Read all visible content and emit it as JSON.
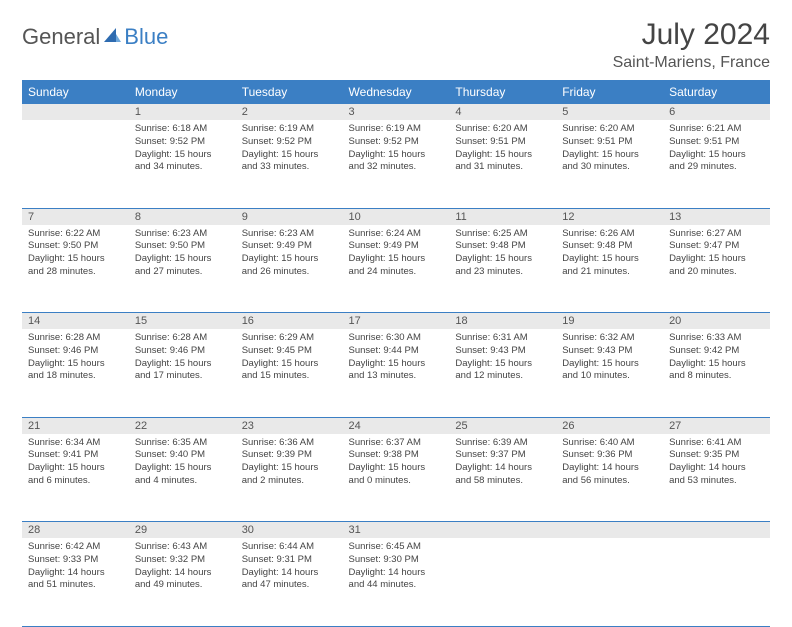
{
  "brand": {
    "part1": "General",
    "part2": "Blue"
  },
  "title": "July 2024",
  "location": "Saint-Mariens, France",
  "colors": {
    "header_bg": "#3b7fc4",
    "header_fg": "#ffffff",
    "daynum_bg": "#e9e9e9",
    "text": "#444444",
    "border": "#3b7fc4"
  },
  "weekdays": [
    "Sunday",
    "Monday",
    "Tuesday",
    "Wednesday",
    "Thursday",
    "Friday",
    "Saturday"
  ],
  "weeks": [
    [
      null,
      {
        "n": "1",
        "sr": "6:18 AM",
        "ss": "9:52 PM",
        "dl": "15 hours and 34 minutes."
      },
      {
        "n": "2",
        "sr": "6:19 AM",
        "ss": "9:52 PM",
        "dl": "15 hours and 33 minutes."
      },
      {
        "n": "3",
        "sr": "6:19 AM",
        "ss": "9:52 PM",
        "dl": "15 hours and 32 minutes."
      },
      {
        "n": "4",
        "sr": "6:20 AM",
        "ss": "9:51 PM",
        "dl": "15 hours and 31 minutes."
      },
      {
        "n": "5",
        "sr": "6:20 AM",
        "ss": "9:51 PM",
        "dl": "15 hours and 30 minutes."
      },
      {
        "n": "6",
        "sr": "6:21 AM",
        "ss": "9:51 PM",
        "dl": "15 hours and 29 minutes."
      }
    ],
    [
      {
        "n": "7",
        "sr": "6:22 AM",
        "ss": "9:50 PM",
        "dl": "15 hours and 28 minutes."
      },
      {
        "n": "8",
        "sr": "6:23 AM",
        "ss": "9:50 PM",
        "dl": "15 hours and 27 minutes."
      },
      {
        "n": "9",
        "sr": "6:23 AM",
        "ss": "9:49 PM",
        "dl": "15 hours and 26 minutes."
      },
      {
        "n": "10",
        "sr": "6:24 AM",
        "ss": "9:49 PM",
        "dl": "15 hours and 24 minutes."
      },
      {
        "n": "11",
        "sr": "6:25 AM",
        "ss": "9:48 PM",
        "dl": "15 hours and 23 minutes."
      },
      {
        "n": "12",
        "sr": "6:26 AM",
        "ss": "9:48 PM",
        "dl": "15 hours and 21 minutes."
      },
      {
        "n": "13",
        "sr": "6:27 AM",
        "ss": "9:47 PM",
        "dl": "15 hours and 20 minutes."
      }
    ],
    [
      {
        "n": "14",
        "sr": "6:28 AM",
        "ss": "9:46 PM",
        "dl": "15 hours and 18 minutes."
      },
      {
        "n": "15",
        "sr": "6:28 AM",
        "ss": "9:46 PM",
        "dl": "15 hours and 17 minutes."
      },
      {
        "n": "16",
        "sr": "6:29 AM",
        "ss": "9:45 PM",
        "dl": "15 hours and 15 minutes."
      },
      {
        "n": "17",
        "sr": "6:30 AM",
        "ss": "9:44 PM",
        "dl": "15 hours and 13 minutes."
      },
      {
        "n": "18",
        "sr": "6:31 AM",
        "ss": "9:43 PM",
        "dl": "15 hours and 12 minutes."
      },
      {
        "n": "19",
        "sr": "6:32 AM",
        "ss": "9:43 PM",
        "dl": "15 hours and 10 minutes."
      },
      {
        "n": "20",
        "sr": "6:33 AM",
        "ss": "9:42 PM",
        "dl": "15 hours and 8 minutes."
      }
    ],
    [
      {
        "n": "21",
        "sr": "6:34 AM",
        "ss": "9:41 PM",
        "dl": "15 hours and 6 minutes."
      },
      {
        "n": "22",
        "sr": "6:35 AM",
        "ss": "9:40 PM",
        "dl": "15 hours and 4 minutes."
      },
      {
        "n": "23",
        "sr": "6:36 AM",
        "ss": "9:39 PM",
        "dl": "15 hours and 2 minutes."
      },
      {
        "n": "24",
        "sr": "6:37 AM",
        "ss": "9:38 PM",
        "dl": "15 hours and 0 minutes."
      },
      {
        "n": "25",
        "sr": "6:39 AM",
        "ss": "9:37 PM",
        "dl": "14 hours and 58 minutes."
      },
      {
        "n": "26",
        "sr": "6:40 AM",
        "ss": "9:36 PM",
        "dl": "14 hours and 56 minutes."
      },
      {
        "n": "27",
        "sr": "6:41 AM",
        "ss": "9:35 PM",
        "dl": "14 hours and 53 minutes."
      }
    ],
    [
      {
        "n": "28",
        "sr": "6:42 AM",
        "ss": "9:33 PM",
        "dl": "14 hours and 51 minutes."
      },
      {
        "n": "29",
        "sr": "6:43 AM",
        "ss": "9:32 PM",
        "dl": "14 hours and 49 minutes."
      },
      {
        "n": "30",
        "sr": "6:44 AM",
        "ss": "9:31 PM",
        "dl": "14 hours and 47 minutes."
      },
      {
        "n": "31",
        "sr": "6:45 AM",
        "ss": "9:30 PM",
        "dl": "14 hours and 44 minutes."
      },
      null,
      null,
      null
    ]
  ],
  "labels": {
    "sunrise": "Sunrise:",
    "sunset": "Sunset:",
    "daylight": "Daylight:"
  }
}
